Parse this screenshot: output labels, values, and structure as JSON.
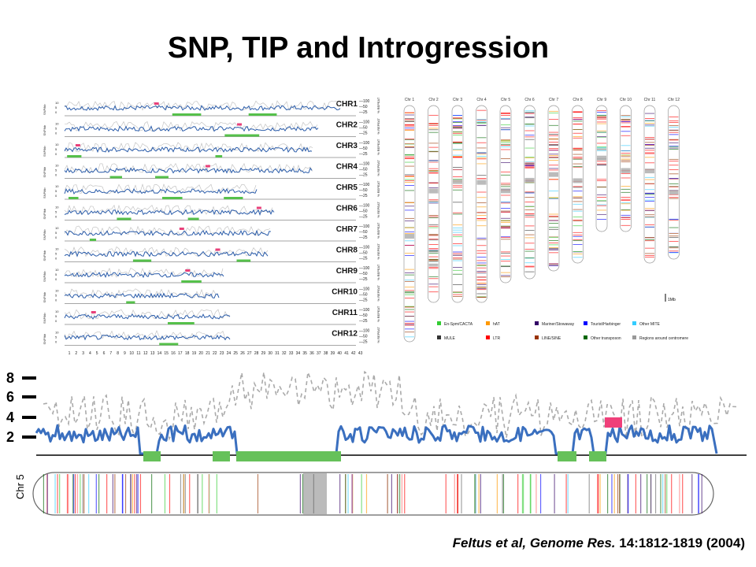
{
  "title": "SNP, TIP and Introgression",
  "citation": {
    "authors": "Feltus et al, ",
    "journal": "Genome Res.",
    "ref": " 14:1812-1819 (2004)"
  },
  "left_panel": {
    "chromosomes": [
      "CHR1",
      "CHR2",
      "CHR3",
      "CHR4",
      "CHR5",
      "CHR6",
      "CHR7",
      "CHR8",
      "CHR9",
      "CHR10",
      "CHR11",
      "CHR12"
    ],
    "right_ticks": [
      "100",
      "50",
      "25"
    ],
    "right_axis_label": "% REPEAT",
    "left_axis_label": "SNP/kb",
    "x_ticks": [
      "1",
      "2",
      "3",
      "4",
      "5",
      "6",
      "7",
      "8",
      "9",
      "10",
      "11",
      "12",
      "13",
      "14",
      "15",
      "16",
      "17",
      "18",
      "19",
      "20",
      "21",
      "22",
      "23",
      "24",
      "25",
      "26",
      "27",
      "28",
      "29",
      "30",
      "31",
      "32",
      "33",
      "34",
      "35",
      "36",
      "37",
      "38",
      "39",
      "40",
      "41",
      "42",
      "43"
    ]
  },
  "right_panel": {
    "chromosomes": [
      "Chr 1",
      "Chr 2",
      "Chr 3",
      "Chr 4",
      "Chr 5",
      "Chr 6",
      "Chr 7",
      "Chr 8",
      "Chr 9",
      "Chr 10",
      "Chr 11",
      "Chr 12"
    ],
    "scale_label": "1Mb",
    "legend": [
      {
        "label": "En-Spm/CACTA",
        "color": "#33cc33"
      },
      {
        "label": "hAT",
        "color": "#ff9900"
      },
      {
        "label": "Mariner/Stowaway",
        "color": "#330066"
      },
      {
        "label": "Tourist/Harbinger",
        "color": "#0000ff"
      },
      {
        "label": "Other MITE",
        "color": "#33ccff"
      },
      {
        "label": "MULE",
        "color": "#333333"
      },
      {
        "label": "LTR",
        "color": "#ff0000"
      },
      {
        "label": "LINE/SINE",
        "color": "#993300"
      },
      {
        "label": "Other transposon",
        "color": "#006600"
      },
      {
        "label": "Regions around centromere",
        "color": "#999999"
      }
    ]
  },
  "bottom_panel": {
    "y_ticks": [
      "8",
      "6",
      "4",
      "2"
    ],
    "chromosome_label": "Chr 5"
  }
}
